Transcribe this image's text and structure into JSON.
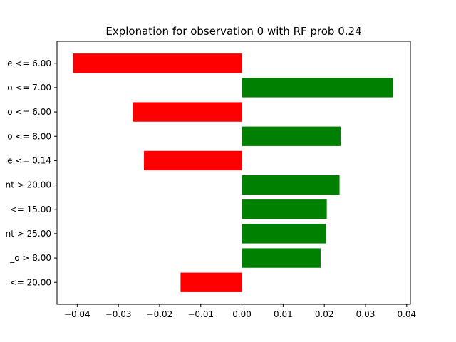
{
  "chart_data": {
    "type": "bar",
    "orientation": "horizontal",
    "title": "Explonation for observation 0 with RF prob 0.24",
    "xlabel": "",
    "ylabel": "",
    "xlim": [
      -0.0449,
      0.0409
    ],
    "grid": false,
    "colors": {
      "negative": "#ff0000",
      "positive": "#008000"
    },
    "categories": [
      "e <= 6.00",
      "o <= 7.00",
      "o <= 6.00",
      "o <= 8.00",
      "e <= 0.14",
      "nt > 20.00",
      "<= 15.00",
      "nt > 25.00",
      "_o > 8.00",
      "<= 20.00"
    ],
    "values": [
      -0.041,
      0.0367,
      -0.0265,
      0.024,
      -0.0238,
      0.0237,
      0.0206,
      0.0204,
      0.0191,
      -0.0149
    ],
    "xticks": [
      -0.04,
      -0.03,
      -0.02,
      -0.01,
      0.0,
      0.01,
      0.02,
      0.03,
      0.04
    ],
    "xtick_labels": [
      "−0.04",
      "−0.03",
      "−0.02",
      "−0.01",
      "0.00",
      "0.01",
      "0.02",
      "0.03",
      "0.04"
    ]
  }
}
